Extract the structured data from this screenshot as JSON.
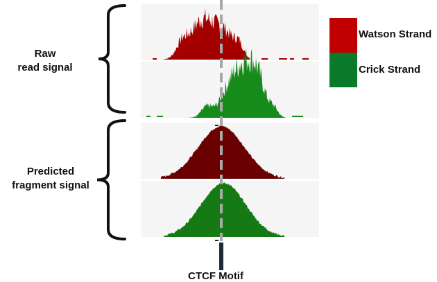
{
  "labels": {
    "raw": [
      "Raw",
      "read signal"
    ],
    "predicted": [
      "Predicted",
      "fragment signal"
    ],
    "motif": "CTCF Motif"
  },
  "legend": [
    {
      "name": "Watson Strand",
      "color": "#c00000"
    },
    {
      "name": "Crick Strand",
      "color": "#0a7a2a"
    }
  ],
  "colors": {
    "raw_watson": "#a40000",
    "raw_crick": "#178a1c",
    "pred_watson": "#6b0000",
    "pred_crick": "#157a14",
    "motif_line": "#a8a8a8",
    "motif_bar": "#1c2a3a",
    "bracket": "#111111"
  }
}
